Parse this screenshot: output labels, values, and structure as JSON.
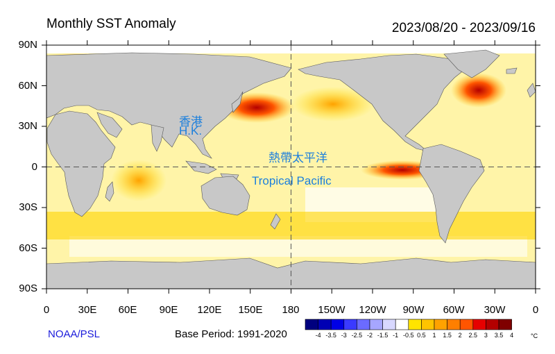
{
  "header": {
    "title": "Monthly SST Anomaly",
    "date_range": "2023/08/20 - 2023/09/16"
  },
  "axes": {
    "lat_ticks": [
      "90N",
      "60N",
      "30N",
      "0",
      "30S",
      "60S",
      "90S"
    ],
    "lon_ticks": [
      "0",
      "30E",
      "60E",
      "90E",
      "120E",
      "150E",
      "180",
      "150W",
      "120W",
      "90W",
      "60W",
      "30W",
      "0"
    ]
  },
  "annotations": {
    "hk_chinese": "香港",
    "hk_english": "H.K.",
    "tropical_chinese": "熱帶太平洋",
    "tropical_english": "Tropical Pacific"
  },
  "footer": {
    "source": "NOAA/PSL",
    "base_period": "Base Period: 1991-2020"
  },
  "colorbar": {
    "labels": [
      "-4",
      "-3.5",
      "-3",
      "-2.5",
      "-2",
      "-1.5",
      "-1",
      "-0.5",
      "0.5",
      "1",
      "1.5",
      "2",
      "2.5",
      "3",
      "3.5",
      "4"
    ],
    "unit": "°C",
    "colors": [
      "#00007f",
      "#0000b3",
      "#0000e6",
      "#3a3aff",
      "#6b6bff",
      "#a6a6ff",
      "#d8d8ff",
      "#ffffff",
      "#ffe400",
      "#ffc400",
      "#ffa200",
      "#ff7f00",
      "#ff5500",
      "#e60000",
      "#b40000",
      "#7f0000"
    ]
  },
  "land_color": "#c8c8c8"
}
